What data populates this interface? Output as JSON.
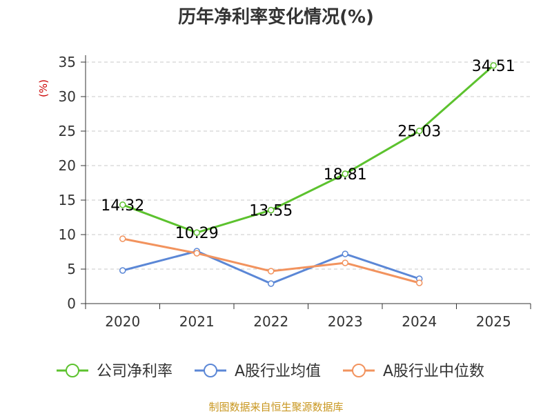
{
  "chart_data": {
    "type": "line",
    "title": "历年净利率变化情况(%)",
    "ylabel": "(%)",
    "categories": [
      "2020",
      "2021",
      "2022",
      "2023",
      "2024",
      "2025"
    ],
    "ylim": [
      0,
      35
    ],
    "yticks": [
      0,
      5,
      10,
      15,
      20,
      25,
      30,
      35
    ],
    "grid": true,
    "legend_position": "bottom",
    "series": [
      {
        "name": "公司净利率",
        "color": "#5cc22e",
        "values": [
          14.32,
          10.29,
          13.55,
          18.81,
          25.03,
          34.51
        ],
        "labels": [
          "14.32",
          "10.29",
          "13.55",
          "18.81",
          "25.03",
          "34.51"
        ]
      },
      {
        "name": "A股行业均值",
        "color": "#5b87d6",
        "values": [
          4.8,
          7.6,
          2.9,
          7.2,
          3.6,
          null
        ]
      },
      {
        "name": "A股行业中位数",
        "color": "#f2935e",
        "values": [
          9.4,
          7.3,
          4.7,
          5.9,
          3.0,
          null
        ]
      }
    ]
  },
  "source": "制图数据来自恒生聚源数据库"
}
